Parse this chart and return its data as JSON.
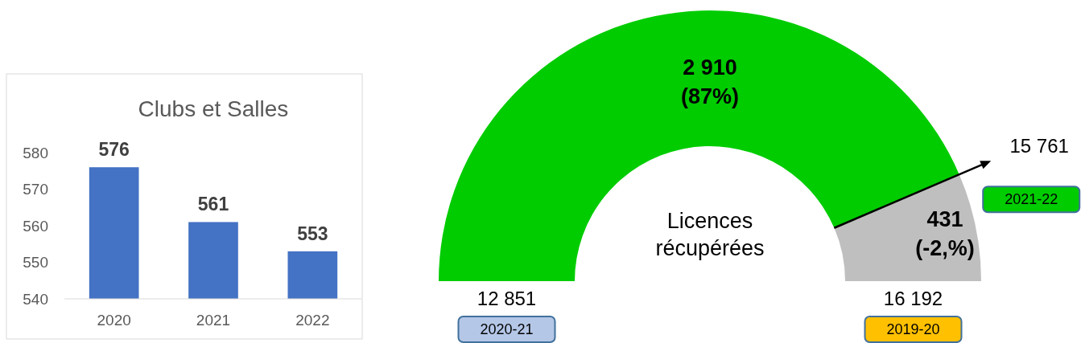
{
  "chart_data": [
    {
      "type": "bar",
      "title": "Clubs et Salles",
      "categories": [
        "2020",
        "2021",
        "2022"
      ],
      "values": [
        576,
        561,
        553
      ],
      "color": "#4472c4",
      "ylim": [
        540,
        580
      ],
      "yticks": [
        540,
        550,
        560,
        570,
        580
      ],
      "data_labels": true
    },
    {
      "type": "donut",
      "categories": [
        null,
        null
      ],
      "values": [
        2910,
        431
      ],
      "colors": [
        "#00cc00",
        "#bfbfbf"
      ],
      "value_labels": [
        "2 910\n(87%)",
        "431\n(-2,%)"
      ],
      "annotations": [
        "Licences\nrécupérées",
        "12 851",
        "2020-21",
        "16 192",
        "2019-20",
        "15 761",
        "2021-22"
      ]
    }
  ]
}
